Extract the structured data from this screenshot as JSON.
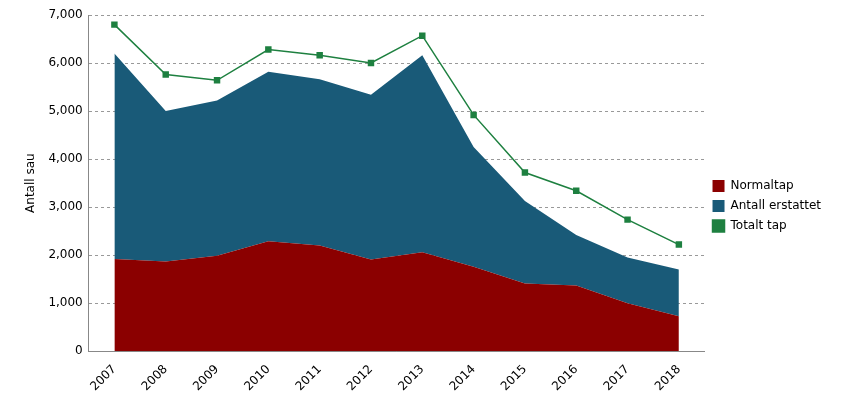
{
  "chart_data": {
    "type": "area",
    "y_label": "Antall sau",
    "categories": [
      "2007",
      "2008",
      "2009",
      "2010",
      "2011",
      "2012",
      "2013",
      "2014",
      "2015",
      "2016",
      "2017",
      "2018"
    ],
    "series": [
      {
        "name": "Normaltap",
        "type": "area",
        "color": "#8b0000",
        "values": [
          1920,
          1870,
          1990,
          2290,
          2200,
          1910,
          2060,
          1760,
          1410,
          1370,
          1000,
          730
        ]
      },
      {
        "name": "Antall erstattet",
        "type": "area",
        "color": "#195a78",
        "values": [
          4280,
          3130,
          3230,
          3530,
          3460,
          3430,
          4100,
          2490,
          1720,
          1050,
          950,
          970
        ]
      },
      {
        "name": "Totalt tap",
        "type": "line",
        "color": "#1e8040",
        "marker": "square",
        "values": [
          6800,
          5760,
          5640,
          6280,
          6160,
          6000,
          6570,
          4920,
          3720,
          3340,
          2740,
          2220
        ]
      }
    ],
    "stacked": true,
    "ylim": [
      0,
      7000
    ],
    "yticks": [
      0,
      1000,
      2000,
      3000,
      4000,
      5000,
      6000,
      7000
    ],
    "grid": true,
    "legend": "right"
  }
}
